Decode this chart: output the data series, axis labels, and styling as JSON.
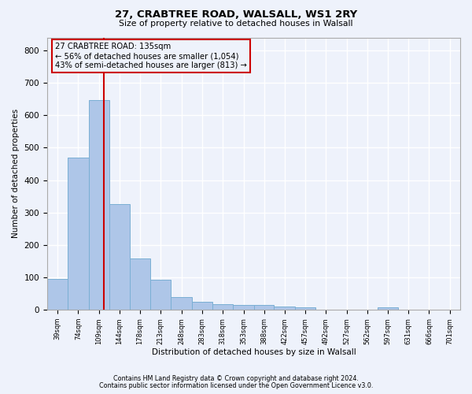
{
  "title1": "27, CRABTREE ROAD, WALSALL, WS1 2RY",
  "title2": "Size of property relative to detached houses in Walsall",
  "xlabel": "Distribution of detached houses by size in Walsall",
  "ylabel": "Number of detached properties",
  "footnote1": "Contains HM Land Registry data © Crown copyright and database right 2024.",
  "footnote2": "Contains public sector information licensed under the Open Government Licence v3.0.",
  "annotation_line1": "27 CRABTREE ROAD: 135sqm",
  "annotation_line2": "← 56% of detached houses are smaller (1,054)",
  "annotation_line3": "43% of semi-detached houses are larger (813) →",
  "property_size": 135,
  "bin_edges": [
    39,
    74,
    109,
    144,
    178,
    213,
    248,
    283,
    318,
    353,
    388,
    422,
    457,
    492,
    527,
    562,
    597,
    631,
    666,
    701,
    736
  ],
  "bar_heights": [
    95,
    470,
    648,
    325,
    158,
    92,
    40,
    25,
    18,
    15,
    14,
    10,
    8,
    0,
    0,
    0,
    8,
    0,
    0,
    0
  ],
  "bar_color": "#aec6e8",
  "bar_edgecolor": "#7aafd4",
  "vline_color": "#cc0000",
  "annotation_box_edgecolor": "#cc0000",
  "background_color": "#eef2fb",
  "grid_color": "#ffffff",
  "ylim": [
    0,
    840
  ],
  "yticks": [
    0,
    100,
    200,
    300,
    400,
    500,
    600,
    700,
    800
  ]
}
